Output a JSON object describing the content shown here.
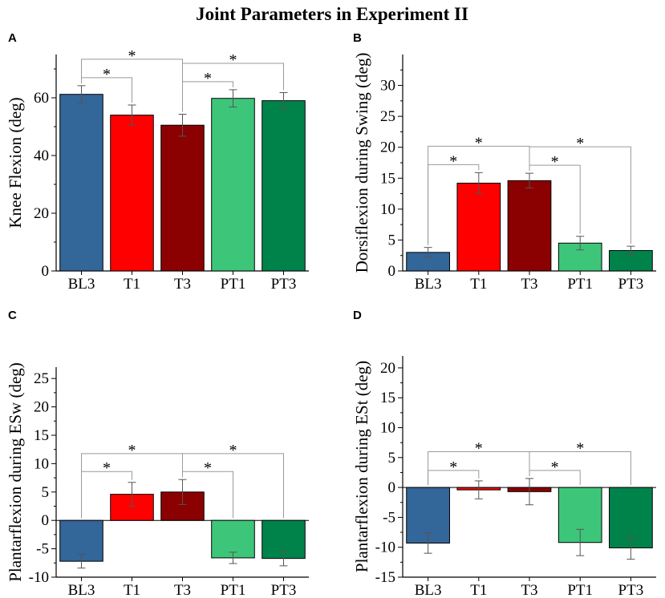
{
  "figure_title": "Joint Parameters in Experiment II",
  "chart_data": [
    {
      "panel": "A",
      "type": "bar",
      "ylabel": "Knee Flexion (deg)",
      "categories": [
        "BL3",
        "T1",
        "T3",
        "PT1",
        "PT3"
      ],
      "values": [
        61.2,
        54.0,
        50.5,
        59.8,
        59.0
      ],
      "errors": [
        3.0,
        3.5,
        3.8,
        3.0,
        2.8
      ],
      "colors": [
        "#336699",
        "#ff0000",
        "#8b0000",
        "#3dc67a",
        "#00834a"
      ],
      "ylim": [
        0,
        75
      ],
      "yticks": [
        0,
        20,
        40,
        60
      ],
      "significance": [
        {
          "from": 0,
          "to": 1,
          "level": 1,
          "label": "*"
        },
        {
          "from": 0,
          "to": 2,
          "level": 2,
          "label": "*"
        },
        {
          "from": 2,
          "to": 3,
          "level": 1,
          "label": "*"
        },
        {
          "from": 2,
          "to": 4,
          "level": 2,
          "label": "*"
        }
      ]
    },
    {
      "panel": "B",
      "type": "bar",
      "ylabel": "Dorsiflexion during Swing (deg)",
      "categories": [
        "BL3",
        "T1",
        "T3",
        "PT1",
        "PT3"
      ],
      "values": [
        3.0,
        14.2,
        14.6,
        4.5,
        3.3
      ],
      "errors": [
        0.8,
        1.7,
        1.2,
        1.1,
        0.7
      ],
      "colors": [
        "#336699",
        "#ff0000",
        "#8b0000",
        "#3dc67a",
        "#00834a"
      ],
      "ylim": [
        0,
        35
      ],
      "yticks": [
        0,
        5,
        10,
        15,
        20,
        25,
        30
      ],
      "significance": [
        {
          "from": 0,
          "to": 1,
          "level": 1,
          "label": "*"
        },
        {
          "from": 0,
          "to": 2,
          "level": 2,
          "label": "*"
        },
        {
          "from": 2,
          "to": 3,
          "level": 1,
          "label": "*"
        },
        {
          "from": 2,
          "to": 4,
          "level": 2,
          "label": "*"
        }
      ]
    },
    {
      "panel": "C",
      "type": "bar",
      "ylabel": "Plantarflexion during ESw (deg)",
      "categories": [
        "BL3",
        "T1",
        "T3",
        "PT1",
        "PT3"
      ],
      "values": [
        -7.2,
        4.6,
        5.0,
        -6.6,
        -6.7
      ],
      "errors": [
        1.2,
        2.1,
        2.2,
        1.0,
        1.3
      ],
      "colors": [
        "#336699",
        "#ff0000",
        "#8b0000",
        "#3dc67a",
        "#00834a"
      ],
      "ylim": [
        -10,
        27
      ],
      "yticks": [
        -10,
        -5,
        0,
        5,
        10,
        15,
        20,
        25
      ],
      "significance": [
        {
          "from": 0,
          "to": 1,
          "level": 1,
          "label": "*"
        },
        {
          "from": 0,
          "to": 2,
          "level": 2,
          "label": "*"
        },
        {
          "from": 2,
          "to": 3,
          "level": 1,
          "label": "*"
        },
        {
          "from": 2,
          "to": 4,
          "level": 2,
          "label": "*"
        }
      ]
    },
    {
      "panel": "D",
      "type": "bar",
      "ylabel": "Plantarflexion during ESt (deg)",
      "categories": [
        "BL3",
        "T1",
        "T3",
        "PT1",
        "PT3"
      ],
      "values": [
        -9.3,
        -0.4,
        -0.7,
        -9.2,
        -10.1
      ],
      "errors": [
        1.7,
        1.5,
        2.2,
        2.2,
        1.9
      ],
      "colors": [
        "#336699",
        "#ff0000",
        "#8b0000",
        "#3dc67a",
        "#00834a"
      ],
      "ylim": [
        -15,
        22
      ],
      "yticks": [
        -15,
        -10,
        -5,
        0,
        5,
        10,
        15,
        20
      ],
      "significance": [
        {
          "from": 0,
          "to": 1,
          "level": 1,
          "label": "*"
        },
        {
          "from": 0,
          "to": 2,
          "level": 2,
          "label": "*"
        },
        {
          "from": 2,
          "to": 3,
          "level": 1,
          "label": "*"
        },
        {
          "from": 2,
          "to": 4,
          "level": 2,
          "label": "*"
        }
      ]
    }
  ]
}
